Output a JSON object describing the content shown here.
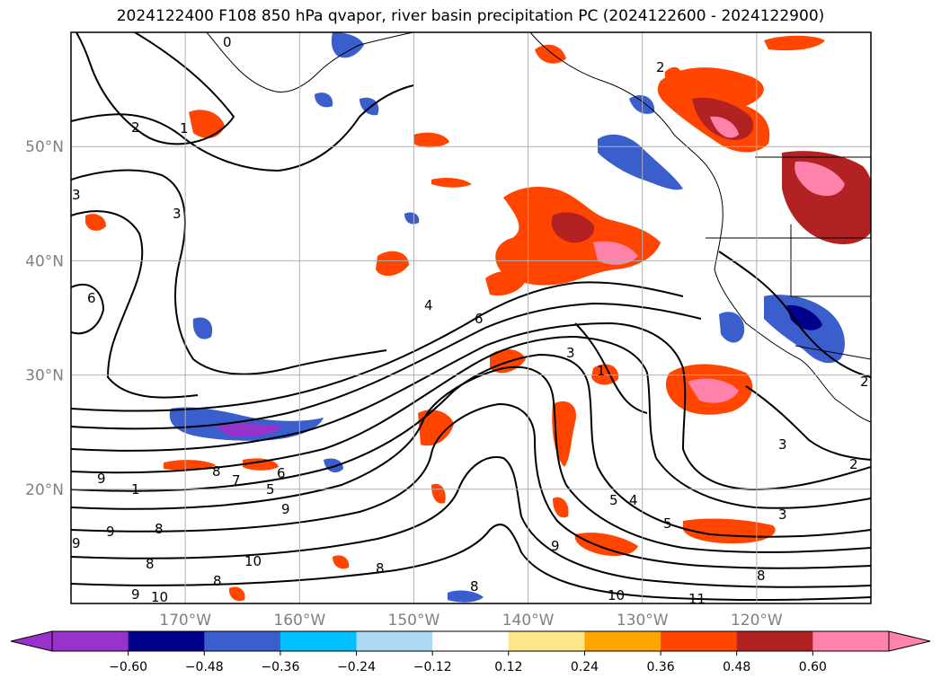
{
  "title": "2024122400 F108 850 hPa qvapor, river basin precipitation PC (2024122600 - 2024122900)",
  "map": {
    "projection": "cylindrical",
    "lon_range": [
      180,
      110
    ],
    "lat_range": [
      10,
      60
    ],
    "lat_ticks": [
      {
        "lat": 50,
        "label": "50°N"
      },
      {
        "lat": 40,
        "label": "40°N"
      },
      {
        "lat": 30,
        "label": "30°N"
      },
      {
        "lat": 20,
        "label": "20°N"
      }
    ],
    "lon_ticks": [
      {
        "lon": 170,
        "label": "170°W"
      },
      {
        "lon": 160,
        "label": "160°W"
      },
      {
        "lon": 150,
        "label": "150°W"
      },
      {
        "lon": 140,
        "label": "140°W"
      },
      {
        "lon": 130,
        "label": "130°W"
      },
      {
        "lon": 120,
        "label": "120°W"
      }
    ],
    "grid": true
  },
  "colorbar": {
    "extend": "both",
    "boundaries": [
      -0.72,
      -0.6,
      -0.48,
      -0.36,
      -0.24,
      -0.12,
      0.12,
      0.24,
      0.36,
      0.48,
      0.6,
      0.72
    ],
    "colors": [
      "#9932cc",
      "#00008b",
      "#3a5fcd",
      "#00bfff",
      "#add8f6",
      "#ffffff",
      "#fde68a",
      "#ffa500",
      "#ff4500",
      "#b22222",
      "#ff82ab"
    ],
    "tick_labels": [
      "−0.60",
      "−0.48",
      "−0.36",
      "−0.24",
      "−0.12",
      "0.12",
      "0.24",
      "0.36",
      "0.48",
      "0.60"
    ]
  },
  "contour_labels": [
    "0",
    "2",
    "1",
    "3",
    "3",
    "6",
    "4",
    "6",
    "2",
    "3",
    "1",
    "9",
    "8",
    "7",
    "6",
    "5",
    "1",
    "9",
    "9",
    "8",
    "8",
    "10",
    "8",
    "9",
    "10",
    "8",
    "9",
    "8",
    "5",
    "4",
    "5",
    "10",
    "11",
    "9",
    "8",
    "3",
    "3",
    "2",
    "2"
  ]
}
